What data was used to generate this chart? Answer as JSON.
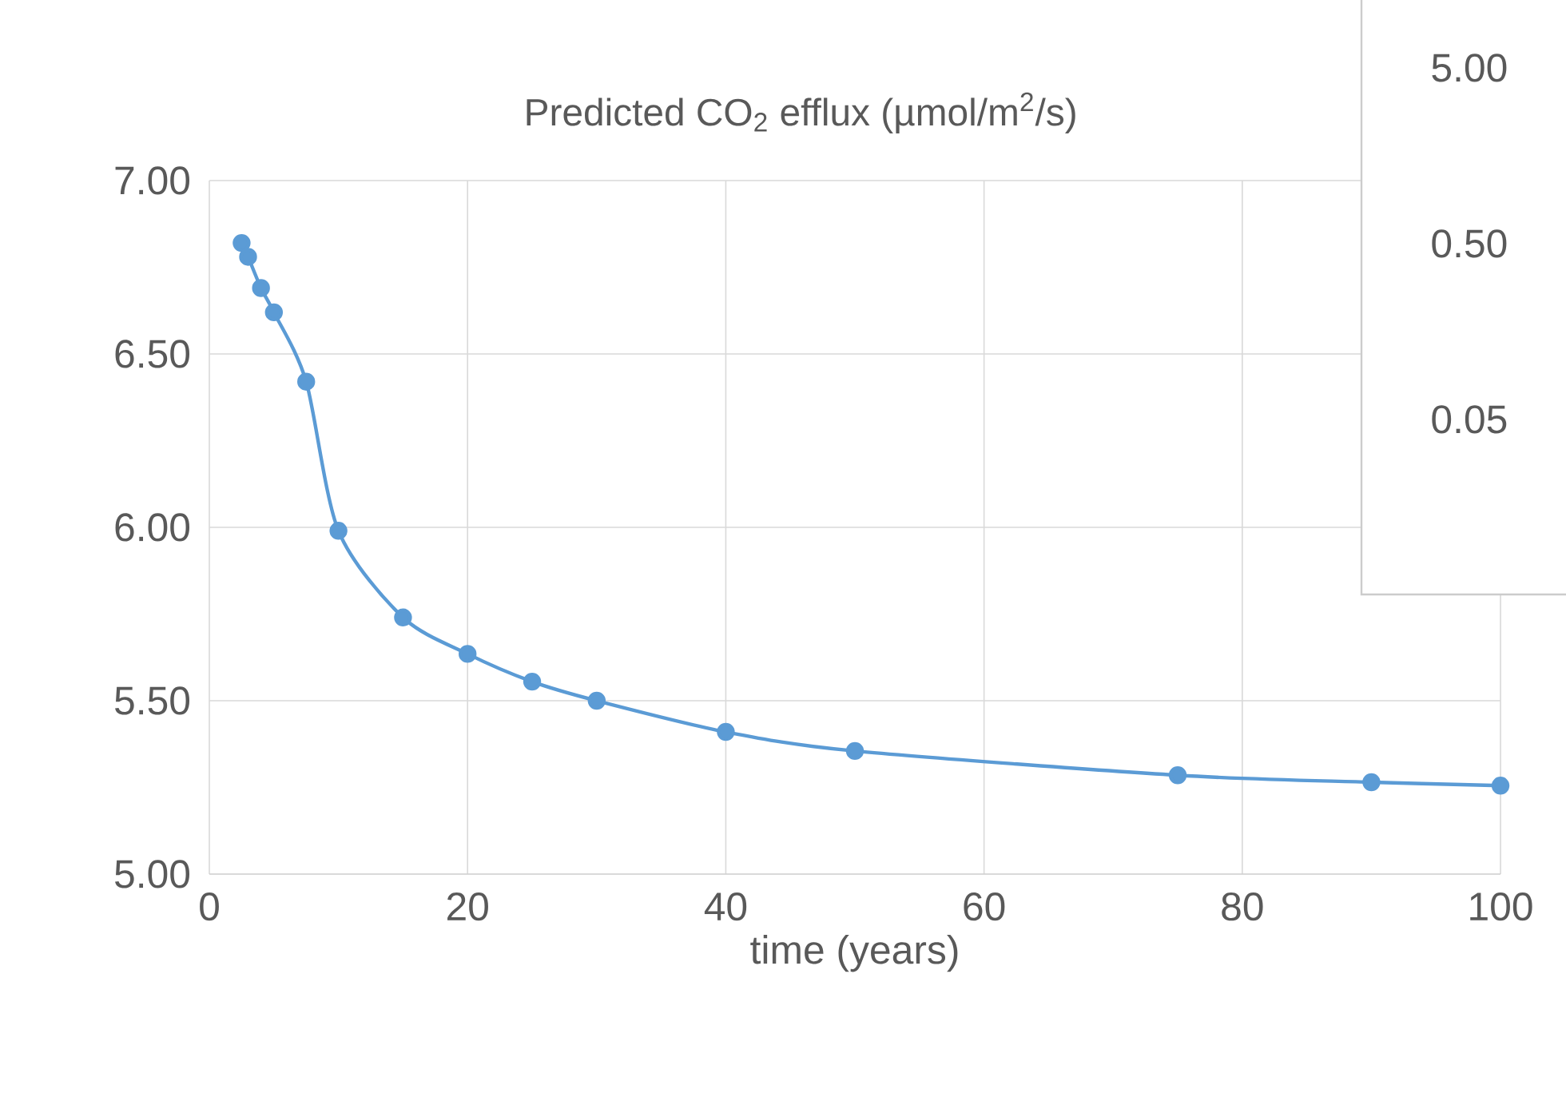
{
  "chart_data": [
    {
      "type": "line",
      "title": "Predicted CO$_{2}$ efflux (µmol/m$^{2}$/s)",
      "xlabel": "time (years)",
      "x": [
        2.5,
        3,
        4,
        5,
        7.5,
        10,
        15,
        20,
        25,
        30,
        40,
        50,
        75,
        90,
        100
      ],
      "series": [
        {
          "color": "#5b9bd5",
          "values": [
            6.82,
            6.78,
            6.69,
            6.62,
            6.42,
            5.99,
            5.74,
            5.635,
            5.555,
            5.5,
            5.41,
            5.355,
            5.285,
            5.265,
            5.255
          ]
        }
      ],
      "xlim": [
        0,
        100
      ],
      "ylim": [
        5,
        7
      ],
      "xticks": [
        0,
        20,
        40,
        60,
        80,
        100
      ],
      "yticks": [
        {
          "value": 5,
          "label": "5.00"
        },
        {
          "value": 5.5,
          "label": "5.50"
        },
        {
          "value": 6,
          "label": "6.00"
        },
        {
          "value": 6.5,
          "label": "6.50"
        },
        {
          "value": 7,
          "label": "7.00"
        }
      ],
      "grid": true,
      "marker": "circle",
      "line_style": "solid"
    },
    {
      "type": "other",
      "annotations": [
        "5.00",
        "0.50",
        "0.05"
      ]
    }
  ]
}
